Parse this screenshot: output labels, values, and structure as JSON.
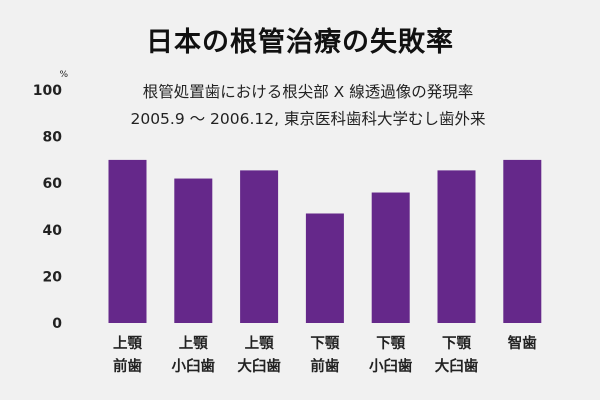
{
  "chart_data": {
    "type": "bar",
    "title": "日本の根管治療の失敗率",
    "subtitle_lines": [
      "根管処置歯における根尖部 X 線透過像の発現率",
      "2005.9 〜 2006.12, 東京医科歯科大学むし歯外来"
    ],
    "unit": "%",
    "ylim": [
      0,
      100
    ],
    "yticks": [
      0,
      20,
      40,
      60,
      80,
      100
    ],
    "grid": false,
    "legend": "none",
    "bar_color": "#65288a",
    "categories": [
      [
        "上顎",
        "前歯"
      ],
      [
        "上顎",
        "小臼歯"
      ],
      [
        "上顎",
        "大臼歯"
      ],
      [
        "下顎",
        "前歯"
      ],
      [
        "下顎",
        "小臼歯"
      ],
      [
        "下顎",
        "大臼歯"
      ],
      [
        "智歯"
      ]
    ],
    "values": [
      70,
      62,
      65.5,
      47,
      56,
      65.5,
      70
    ]
  }
}
